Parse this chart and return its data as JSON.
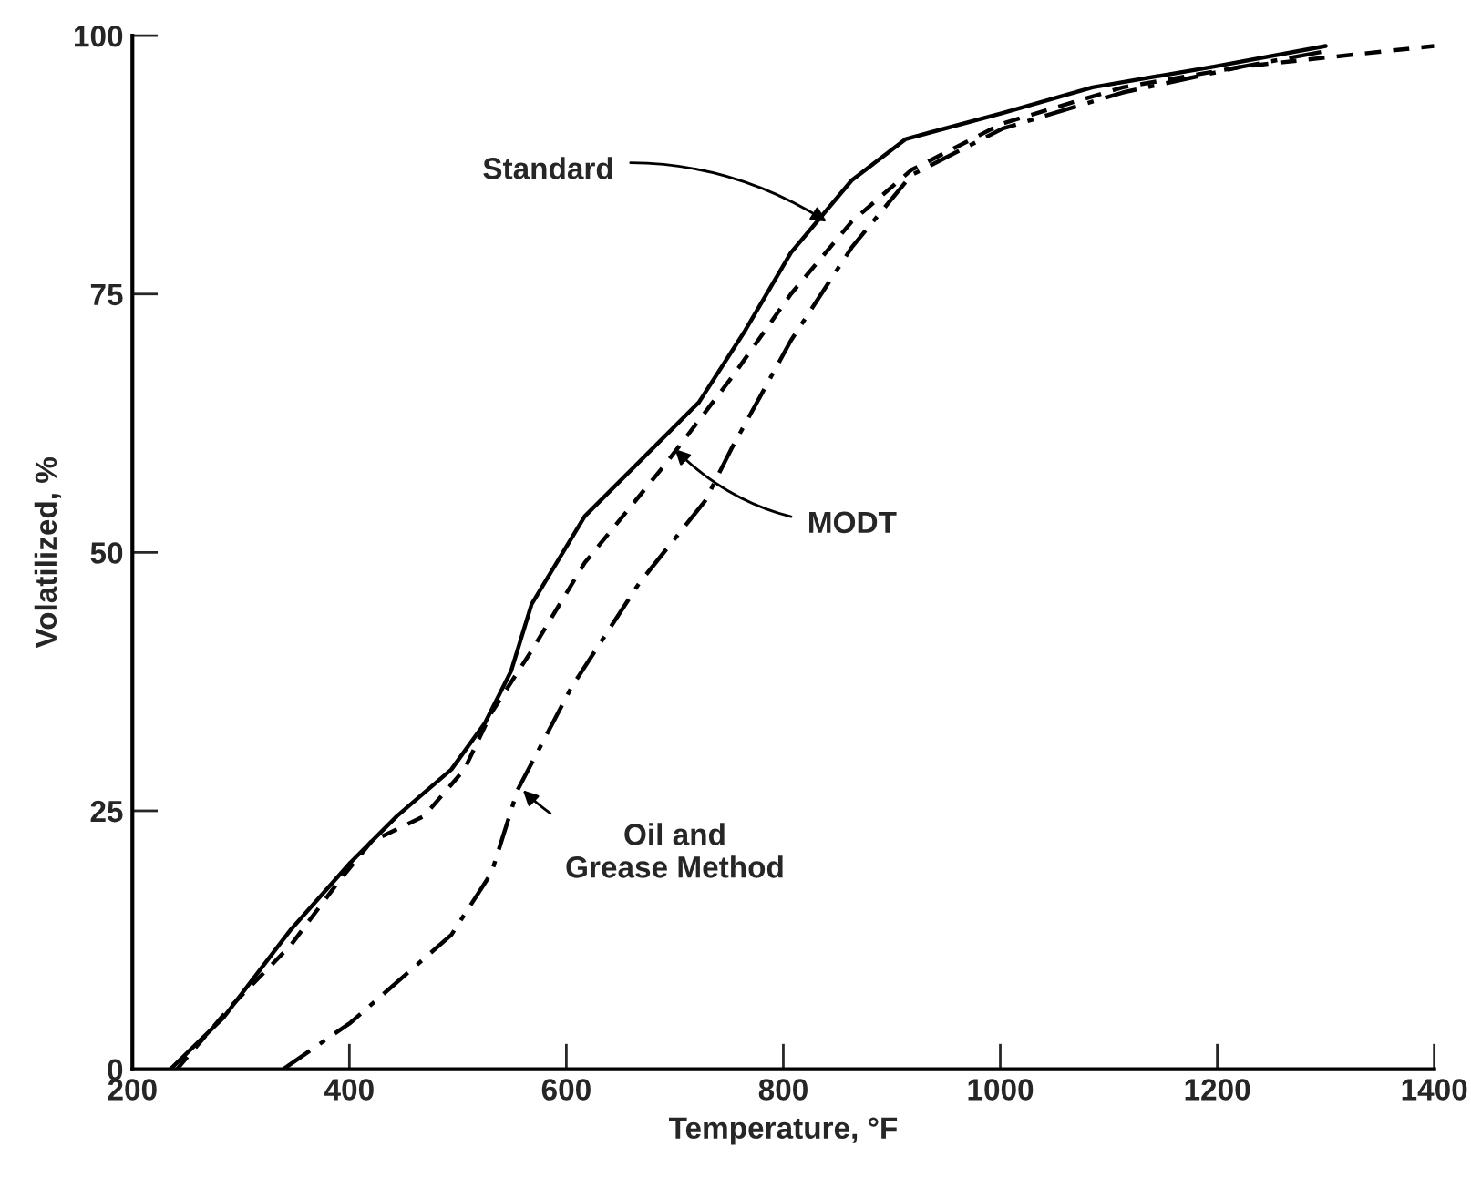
{
  "chart_data": {
    "type": "line",
    "xlabel": "Temperature, °F",
    "ylabel": "Volatilized, %",
    "xlim": [
      200,
      1400
    ],
    "ylim": [
      0,
      100
    ],
    "xticks": [
      200,
      400,
      600,
      800,
      1000,
      1200,
      1400
    ],
    "yticks": [
      0,
      25,
      50,
      75,
      100
    ],
    "grid": false,
    "legend": false,
    "series": [
      {
        "color": "#000000",
        "line_style": "solid",
        "x": [
          235,
          284,
          346,
          401,
          444,
          494,
          525,
          549,
          568,
          617,
          679,
          722,
          765,
          807,
          863,
          913,
          1002,
          1085,
          1197,
          1300
        ],
        "values": [
          0,
          5,
          13.5,
          20,
          24.5,
          29,
          33.5,
          38.5,
          45,
          53.5,
          60,
          64.5,
          71.5,
          79,
          86,
          90,
          92.5,
          95,
          97,
          99
        ]
      },
      {
        "color": "#000000",
        "line_style": "dashed",
        "x": [
          241,
          290,
          346,
          389,
          420,
          469,
          506,
          531,
          568,
          617,
          691,
          753,
          807,
          863,
          918,
          1002,
          1113,
          1223,
          1400
        ],
        "values": [
          0,
          6,
          12,
          18,
          22,
          24.5,
          29,
          34.5,
          40.5,
          49,
          58.5,
          67,
          75,
          82,
          87,
          91.5,
          95,
          97,
          99
        ]
      },
      {
        "color": "#000000",
        "line_style": "dashdot",
        "x": [
          339,
          401,
          494,
          531,
          555,
          605,
          667,
          728,
          752,
          807,
          863,
          918,
          1002,
          1113,
          1223,
          1300
        ],
        "values": [
          0,
          4.5,
          13,
          19,
          27,
          37,
          47,
          55,
          60,
          70.5,
          79.5,
          86.5,
          91,
          94.5,
          97,
          98.5
        ]
      }
    ],
    "annotations": [
      {
        "text": "Standard",
        "x": 840,
        "y": 82
      },
      {
        "text": "MODT",
        "x": 700,
        "y": 60
      },
      {
        "text": "Oil and\nGrease Method",
        "x": 560,
        "y": 27
      }
    ]
  }
}
